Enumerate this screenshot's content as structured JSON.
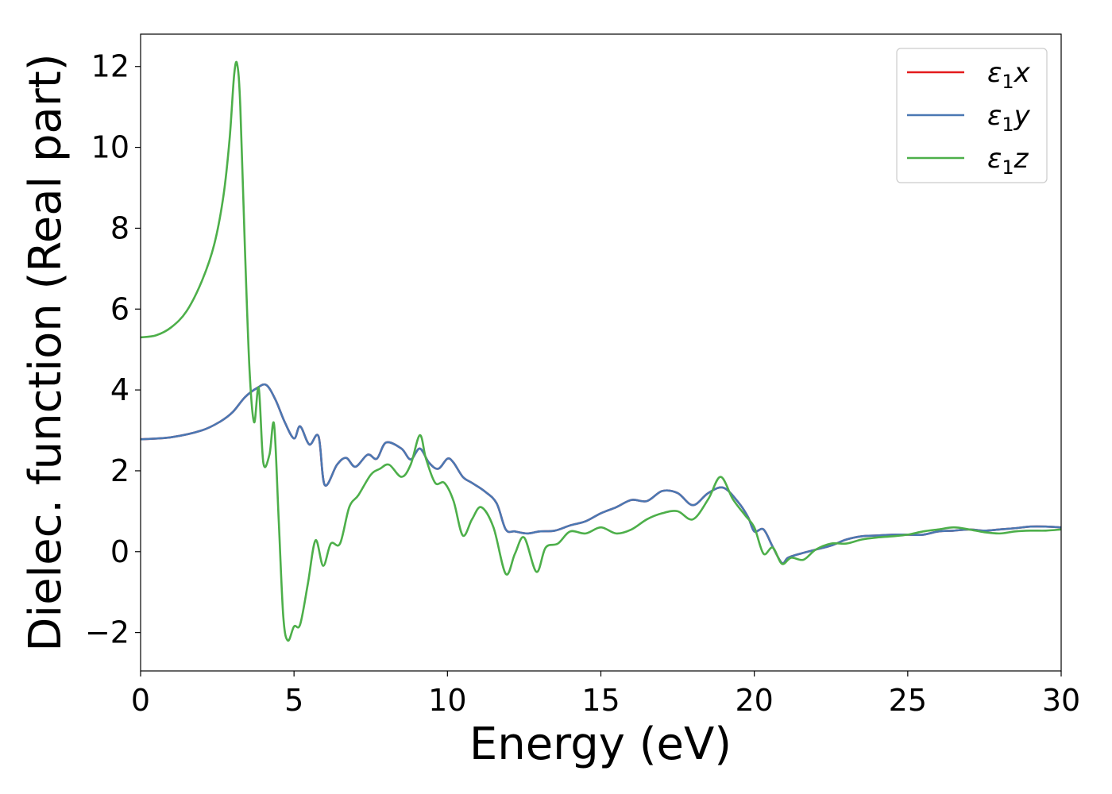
{
  "chart_data": {
    "type": "line",
    "title": "",
    "xlabel": "Energy (eV)",
    "ylabel": "Dielec. function (Real part)",
    "xlim": [
      0,
      30
    ],
    "ylim": [
      -2.95,
      12.8
    ],
    "xticks": [
      0,
      5,
      10,
      15,
      20,
      25,
      30
    ],
    "yticks": [
      -2,
      0,
      2,
      4,
      6,
      8,
      10,
      12
    ],
    "xtick_labels": [
      "0",
      "5",
      "10",
      "15",
      "20",
      "25",
      "30"
    ],
    "ytick_labels": [
      "−2",
      "0",
      "2",
      "4",
      "6",
      "8",
      "10",
      "12"
    ],
    "grid": false,
    "legend_position": "top-right",
    "series": [
      {
        "name": "ε1x",
        "symbol": "ε",
        "subscript": "1",
        "component": "x",
        "color": "#e41a1c",
        "x": [
          0,
          1,
          2,
          2.6,
          3.0,
          3.4,
          3.8,
          4.1,
          4.4,
          4.7,
          5.0,
          5.2,
          5.5,
          5.8,
          6.0,
          6.4,
          6.7,
          7.0,
          7.4,
          7.7,
          8.0,
          8.5,
          8.8,
          9.1,
          9.4,
          9.7,
          10.0,
          10.2,
          10.5,
          10.8,
          11.2,
          11.6,
          11.9,
          12.2,
          12.6,
          13.0,
          13.5,
          14.0,
          14.5,
          15.0,
          15.5,
          16.0,
          16.5,
          17.0,
          17.5,
          18.0,
          18.5,
          19.0,
          19.5,
          19.8,
          20.0,
          20.3,
          20.6,
          20.9,
          21.1,
          21.5,
          22.0,
          22.5,
          23.0,
          23.5,
          24.0,
          24.5,
          25.0,
          25.5,
          26.0,
          26.5,
          27.0,
          27.5,
          28.0,
          28.5,
          29.0,
          29.5,
          30.0
        ],
        "y": [
          2.78,
          2.83,
          3.0,
          3.22,
          3.45,
          3.82,
          4.05,
          4.12,
          3.75,
          3.2,
          2.8,
          3.1,
          2.65,
          2.85,
          1.65,
          2.15,
          2.32,
          2.1,
          2.4,
          2.3,
          2.7,
          2.55,
          2.28,
          2.55,
          2.2,
          2.05,
          2.3,
          2.2,
          1.85,
          1.7,
          1.5,
          1.2,
          0.55,
          0.5,
          0.45,
          0.5,
          0.52,
          0.65,
          0.75,
          0.95,
          1.1,
          1.28,
          1.25,
          1.5,
          1.45,
          1.15,
          1.45,
          1.58,
          1.2,
          0.85,
          0.5,
          0.55,
          0.12,
          -0.28,
          -0.15,
          -0.05,
          0.05,
          0.15,
          0.3,
          0.38,
          0.4,
          0.42,
          0.42,
          0.42,
          0.5,
          0.52,
          0.55,
          0.52,
          0.55,
          0.58,
          0.62,
          0.62,
          0.6
        ]
      },
      {
        "name": "ε1y",
        "symbol": "ε",
        "subscript": "1",
        "component": "y",
        "color": "#4a78b3",
        "x": [
          0,
          1,
          2,
          2.6,
          3.0,
          3.4,
          3.8,
          4.1,
          4.4,
          4.7,
          5.0,
          5.2,
          5.5,
          5.8,
          6.0,
          6.4,
          6.7,
          7.0,
          7.4,
          7.7,
          8.0,
          8.5,
          8.8,
          9.1,
          9.4,
          9.7,
          10.0,
          10.2,
          10.5,
          10.8,
          11.2,
          11.6,
          11.9,
          12.2,
          12.6,
          13.0,
          13.5,
          14.0,
          14.5,
          15.0,
          15.5,
          16.0,
          16.5,
          17.0,
          17.5,
          18.0,
          18.5,
          19.0,
          19.5,
          19.8,
          20.0,
          20.3,
          20.6,
          20.9,
          21.1,
          21.5,
          22.0,
          22.5,
          23.0,
          23.5,
          24.0,
          24.5,
          25.0,
          25.5,
          26.0,
          26.5,
          27.0,
          27.5,
          28.0,
          28.5,
          29.0,
          29.5,
          30.0
        ],
        "y": [
          2.78,
          2.83,
          3.0,
          3.22,
          3.45,
          3.82,
          4.05,
          4.12,
          3.75,
          3.2,
          2.8,
          3.1,
          2.65,
          2.85,
          1.65,
          2.15,
          2.32,
          2.1,
          2.4,
          2.3,
          2.7,
          2.55,
          2.28,
          2.55,
          2.2,
          2.05,
          2.3,
          2.2,
          1.85,
          1.7,
          1.5,
          1.2,
          0.55,
          0.5,
          0.45,
          0.5,
          0.52,
          0.65,
          0.75,
          0.95,
          1.1,
          1.28,
          1.25,
          1.5,
          1.45,
          1.15,
          1.45,
          1.58,
          1.2,
          0.85,
          0.5,
          0.55,
          0.12,
          -0.28,
          -0.15,
          -0.05,
          0.05,
          0.15,
          0.3,
          0.38,
          0.4,
          0.42,
          0.42,
          0.42,
          0.5,
          0.52,
          0.55,
          0.52,
          0.55,
          0.58,
          0.62,
          0.62,
          0.6
        ]
      },
      {
        "name": "ε1z",
        "symbol": "ε",
        "subscript": "1",
        "component": "z",
        "color": "#4daf4a",
        "x": [
          0,
          0.5,
          1.0,
          1.5,
          2.0,
          2.4,
          2.7,
          2.9,
          3.05,
          3.15,
          3.25,
          3.4,
          3.55,
          3.7,
          3.85,
          4.0,
          4.2,
          4.35,
          4.5,
          4.65,
          4.8,
          5.0,
          5.2,
          5.45,
          5.7,
          5.95,
          6.2,
          6.5,
          6.8,
          7.1,
          7.5,
          7.8,
          8.1,
          8.5,
          8.8,
          9.1,
          9.3,
          9.6,
          9.9,
          10.2,
          10.5,
          10.8,
          11.1,
          11.5,
          11.9,
          12.2,
          12.5,
          12.9,
          13.2,
          13.6,
          14.0,
          14.5,
          15.0,
          15.5,
          16.0,
          16.5,
          17.0,
          17.5,
          18.0,
          18.5,
          18.9,
          19.3,
          19.7,
          20.0,
          20.3,
          20.6,
          20.9,
          21.2,
          21.6,
          22.0,
          22.5,
          23.0,
          23.5,
          24.0,
          24.5,
          25.0,
          25.5,
          26.0,
          26.5,
          27.0,
          27.5,
          28.0,
          28.5,
          29.0,
          29.5,
          30.0
        ],
        "y": [
          5.3,
          5.35,
          5.55,
          5.95,
          6.7,
          7.6,
          8.8,
          10.2,
          11.8,
          12.05,
          11.0,
          7.5,
          4.5,
          3.2,
          4.05,
          2.2,
          2.4,
          3.15,
          0.8,
          -1.6,
          -2.2,
          -1.85,
          -1.8,
          -0.8,
          0.28,
          -0.35,
          0.2,
          0.2,
          1.1,
          1.4,
          1.9,
          2.05,
          2.15,
          1.85,
          2.15,
          2.88,
          2.3,
          1.7,
          1.7,
          1.25,
          0.4,
          0.8,
          1.1,
          0.6,
          -0.55,
          -0.05,
          0.35,
          -0.5,
          0.1,
          0.2,
          0.5,
          0.45,
          0.6,
          0.45,
          0.55,
          0.8,
          0.95,
          1.0,
          0.8,
          1.3,
          1.85,
          1.3,
          0.9,
          0.6,
          -0.05,
          0.1,
          -0.3,
          -0.15,
          -0.2,
          0.05,
          0.2,
          0.2,
          0.3,
          0.35,
          0.38,
          0.42,
          0.5,
          0.55,
          0.6,
          0.55,
          0.48,
          0.45,
          0.5,
          0.52,
          0.52,
          0.55
        ]
      }
    ]
  }
}
